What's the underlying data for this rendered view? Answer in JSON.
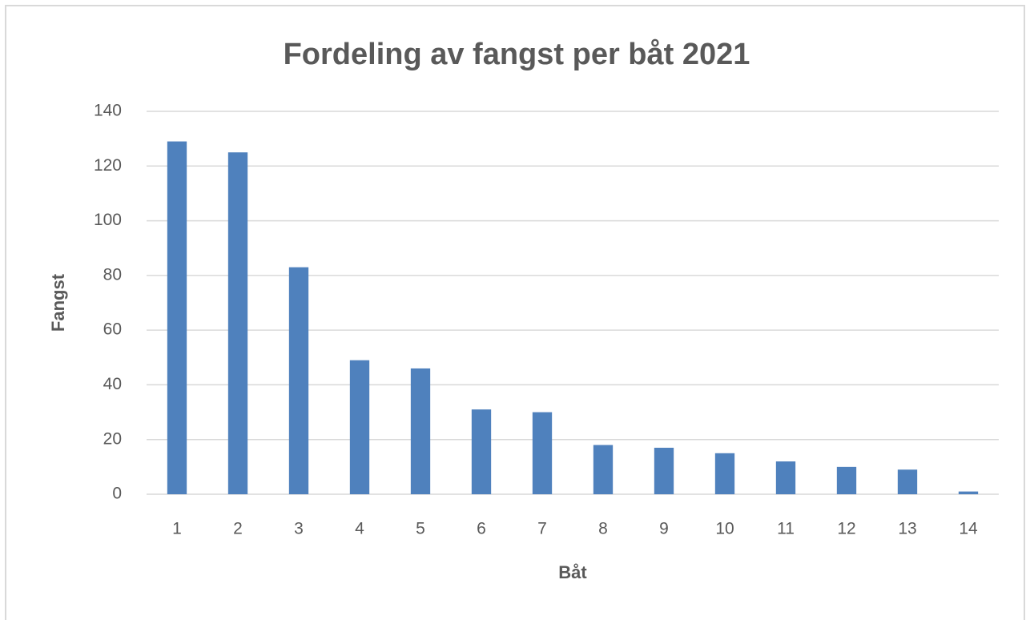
{
  "chart_data": {
    "type": "bar",
    "title": "Fordeling av fangst per båt 2021",
    "x_label": "Båt",
    "y_label": "Fangst",
    "categories": [
      "1",
      "2",
      "3",
      "4",
      "5",
      "6",
      "7",
      "8",
      "9",
      "10",
      "11",
      "12",
      "13",
      "14"
    ],
    "values": [
      129,
      125,
      83,
      49,
      46,
      31,
      30,
      18,
      17,
      15,
      12,
      10,
      9,
      1
    ],
    "color": "#4f81bd",
    "ylim": [
      0,
      140
    ],
    "yticks": [
      0,
      20,
      40,
      60,
      80,
      100,
      120,
      140
    ],
    "grid": true
  }
}
